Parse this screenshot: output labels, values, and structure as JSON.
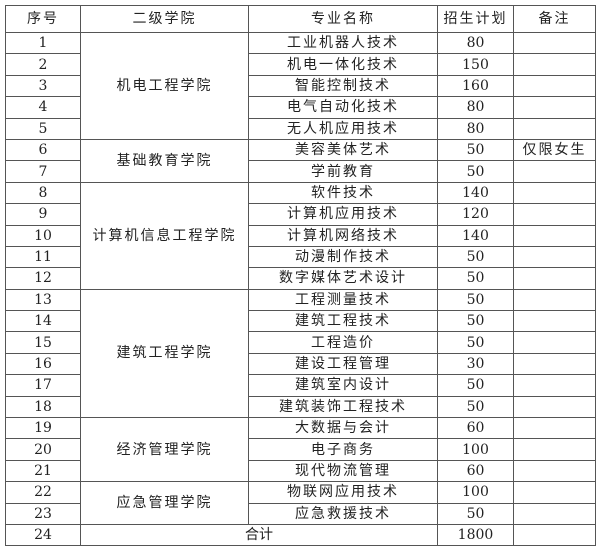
{
  "headers": [
    "序号",
    "二级学院",
    "专业名称",
    "招生计划",
    "备注"
  ],
  "groups": [
    {
      "college": "机电工程学院",
      "rows": [
        {
          "no": "1",
          "major": "工业机器人技术",
          "plan": "80",
          "remark": ""
        },
        {
          "no": "2",
          "major": "机电一体化技术",
          "plan": "150",
          "remark": ""
        },
        {
          "no": "3",
          "major": "智能控制技术",
          "plan": "160",
          "remark": ""
        },
        {
          "no": "4",
          "major": "电气自动化技术",
          "plan": "80",
          "remark": ""
        },
        {
          "no": "5",
          "major": "无人机应用技术",
          "plan": "80",
          "remark": ""
        }
      ]
    },
    {
      "college": "基础教育学院",
      "rows": [
        {
          "no": "6",
          "major": "美容美体艺术",
          "plan": "50",
          "remark": "仅限女生"
        },
        {
          "no": "7",
          "major": "学前教育",
          "plan": "50",
          "remark": ""
        }
      ]
    },
    {
      "college": "计算机信息工程学院",
      "rows": [
        {
          "no": "8",
          "major": "软件技术",
          "plan": "140",
          "remark": ""
        },
        {
          "no": "9",
          "major": "计算机应用技术",
          "plan": "120",
          "remark": ""
        },
        {
          "no": "10",
          "major": "计算机网络技术",
          "plan": "140",
          "remark": ""
        },
        {
          "no": "11",
          "major": "动漫制作技术",
          "plan": "50",
          "remark": ""
        },
        {
          "no": "12",
          "major": "数字媒体艺术设计",
          "plan": "50",
          "remark": ""
        }
      ]
    },
    {
      "college": "建筑工程学院",
      "rows": [
        {
          "no": "13",
          "major": "工程测量技术",
          "plan": "50",
          "remark": ""
        },
        {
          "no": "14",
          "major": "建筑工程技术",
          "plan": "50",
          "remark": ""
        },
        {
          "no": "15",
          "major": "工程造价",
          "plan": "50",
          "remark": ""
        },
        {
          "no": "16",
          "major": "建设工程管理",
          "plan": "30",
          "remark": ""
        },
        {
          "no": "17",
          "major": "建筑室内设计",
          "plan": "50",
          "remark": ""
        },
        {
          "no": "18",
          "major": "建筑装饰工程技术",
          "plan": "50",
          "remark": ""
        }
      ]
    },
    {
      "college": "经济管理学院",
      "rows": [
        {
          "no": "19",
          "major": "大数据与会计",
          "plan": "60",
          "remark": ""
        },
        {
          "no": "20",
          "major": "电子商务",
          "plan": "100",
          "remark": ""
        },
        {
          "no": "21",
          "major": "现代物流管理",
          "plan": "60",
          "remark": ""
        }
      ]
    },
    {
      "college": "应急管理学院",
      "rows": [
        {
          "no": "22",
          "major": "物联网应用技术",
          "plan": "100",
          "remark": ""
        },
        {
          "no": "23",
          "major": "应急救援技术",
          "plan": "50",
          "remark": ""
        }
      ]
    }
  ],
  "total": {
    "no": "24",
    "label": "合计",
    "plan": "1800",
    "remark": ""
  }
}
